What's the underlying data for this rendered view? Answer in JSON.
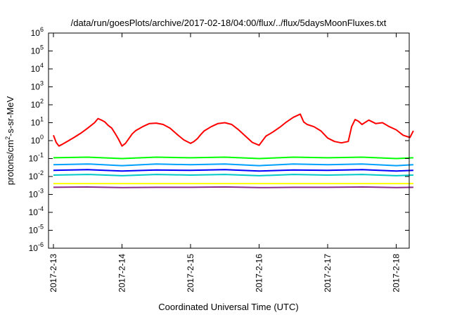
{
  "chart_data": {
    "type": "line",
    "title": "/data/run/goesPlots/archive/2017-02-18/04:00/flux/../flux/5daysMoonFluxes.txt",
    "xlabel": "Coordinated Universal Time (UTC)",
    "ylabel": {
      "pre": "protons/cm",
      "sup": "2",
      "post": "-s-sr-MeV"
    },
    "yscale": "log",
    "ylim": [
      1e-06,
      1000000.0
    ],
    "xlim": [
      "2017-02-13",
      "2017-02-18 06:00"
    ],
    "grid": false,
    "legend": "none",
    "xticks": [
      {
        "pos": 0,
        "label": "2017-2-13"
      },
      {
        "pos": 1,
        "label": "2017-2-14"
      },
      {
        "pos": 2,
        "label": "2017-2-15"
      },
      {
        "pos": 3,
        "label": "2017-2-16"
      },
      {
        "pos": 4,
        "label": "2017-2-17"
      },
      {
        "pos": 5,
        "label": "2017-2-18"
      }
    ],
    "yticks": [
      {
        "exp": -6,
        "label": "10",
        "sup": "-6"
      },
      {
        "exp": -5,
        "label": "10",
        "sup": "-5"
      },
      {
        "exp": -4,
        "label": "10",
        "sup": "-4"
      },
      {
        "exp": -3,
        "label": "10",
        "sup": "-3"
      },
      {
        "exp": -2,
        "label": "10",
        "sup": "-2"
      },
      {
        "exp": -1,
        "label": "10",
        "sup": "-1"
      },
      {
        "exp": 0,
        "label": "10",
        "sup": "0"
      },
      {
        "exp": 1,
        "label": "10",
        "sup": "1"
      },
      {
        "exp": 2,
        "label": "10",
        "sup": "2"
      },
      {
        "exp": 3,
        "label": "10",
        "sup": "3"
      },
      {
        "exp": 4,
        "label": "10",
        "sup": "4"
      },
      {
        "exp": 5,
        "label": "10",
        "sup": "5"
      },
      {
        "exp": 6,
        "label": "10",
        "sup": "6"
      }
    ],
    "series": [
      {
        "color": "#ff0000",
        "x": [
          0,
          0.04,
          0.08,
          0.12,
          0.2,
          0.3,
          0.4,
          0.5,
          0.6,
          0.65,
          0.7,
          0.75,
          0.8,
          0.85,
          0.9,
          0.95,
          1.0,
          1.05,
          1.1,
          1.15,
          1.2,
          1.3,
          1.4,
          1.5,
          1.6,
          1.7,
          1.8,
          1.9,
          2.0,
          2.05,
          2.1,
          2.15,
          2.2,
          2.3,
          2.4,
          2.5,
          2.6,
          2.7,
          2.8,
          2.9,
          3.0,
          3.05,
          3.1,
          3.15,
          3.2,
          3.3,
          3.4,
          3.5,
          3.6,
          3.65,
          3.7,
          3.8,
          3.9,
          4.0,
          4.1,
          4.2,
          4.3,
          4.35,
          4.4,
          4.45,
          4.5,
          4.6,
          4.7,
          4.8,
          4.9,
          5.0,
          5.1,
          5.2,
          5.25
        ],
        "y": [
          2,
          0.8,
          0.5,
          0.6,
          0.9,
          1.5,
          2.6,
          5,
          10,
          17,
          14,
          11,
          7,
          5,
          2.5,
          1.2,
          0.5,
          0.7,
          1.3,
          2.4,
          3.6,
          6,
          9,
          9.5,
          8,
          5,
          2.3,
          1.1,
          0.7,
          0.9,
          1.3,
          2.2,
          3.5,
          6,
          9,
          10,
          8,
          4,
          1.8,
          0.8,
          0.55,
          1,
          1.8,
          2.3,
          3,
          5.5,
          11,
          20,
          30,
          11,
          8,
          6,
          3.5,
          1.4,
          0.9,
          0.75,
          0.9,
          6,
          15,
          12,
          8,
          14,
          9,
          10,
          6,
          4,
          2,
          1.5,
          3.5
        ]
      },
      {
        "color": "#00ff00",
        "x": [
          0,
          0.5,
          1,
          1.5,
          2,
          2.5,
          3,
          3.5,
          4,
          4.5,
          5,
          5.25
        ],
        "y": [
          0.11,
          0.12,
          0.1,
          0.12,
          0.11,
          0.12,
          0.1,
          0.12,
          0.11,
          0.12,
          0.1,
          0.11
        ]
      },
      {
        "color": "#00a0ff",
        "x": [
          0,
          0.5,
          1,
          1.5,
          2,
          2.5,
          3,
          3.5,
          4,
          4.5,
          5,
          5.25
        ],
        "y": [
          0.045,
          0.05,
          0.04,
          0.05,
          0.045,
          0.05,
          0.04,
          0.05,
          0.045,
          0.05,
          0.04,
          0.045
        ]
      },
      {
        "color": "#0000ff",
        "x": [
          0,
          0.5,
          1,
          1.5,
          2,
          2.5,
          3,
          3.5,
          4,
          4.5,
          5,
          5.25
        ],
        "y": [
          0.022,
          0.024,
          0.02,
          0.023,
          0.022,
          0.024,
          0.02,
          0.023,
          0.022,
          0.024,
          0.02,
          0.022
        ]
      },
      {
        "color": "#00c8c8",
        "x": [
          0,
          0.5,
          1,
          1.5,
          2,
          2.5,
          3,
          3.5,
          4,
          4.5,
          5,
          5.25
        ],
        "y": [
          0.012,
          0.013,
          0.011,
          0.013,
          0.012,
          0.013,
          0.011,
          0.013,
          0.012,
          0.013,
          0.011,
          0.012
        ]
      },
      {
        "color": "#ffff00",
        "x": [
          0,
          0.5,
          1,
          1.5,
          2,
          2.5,
          3,
          3.5,
          4,
          4.5,
          5,
          5.25
        ],
        "y": [
          0.004,
          0.004,
          0.004,
          0.004,
          0.004,
          0.004,
          0.004,
          0.004,
          0.004,
          0.004,
          0.004,
          0.004
        ]
      },
      {
        "color": "#8b2a8b",
        "x": [
          0,
          0.5,
          1,
          1.5,
          2,
          2.5,
          3,
          3.5,
          4,
          4.5,
          5,
          5.25
        ],
        "y": [
          0.0025,
          0.0026,
          0.0024,
          0.0025,
          0.0025,
          0.0026,
          0.0024,
          0.0025,
          0.0025,
          0.0026,
          0.0024,
          0.0025
        ]
      }
    ]
  }
}
